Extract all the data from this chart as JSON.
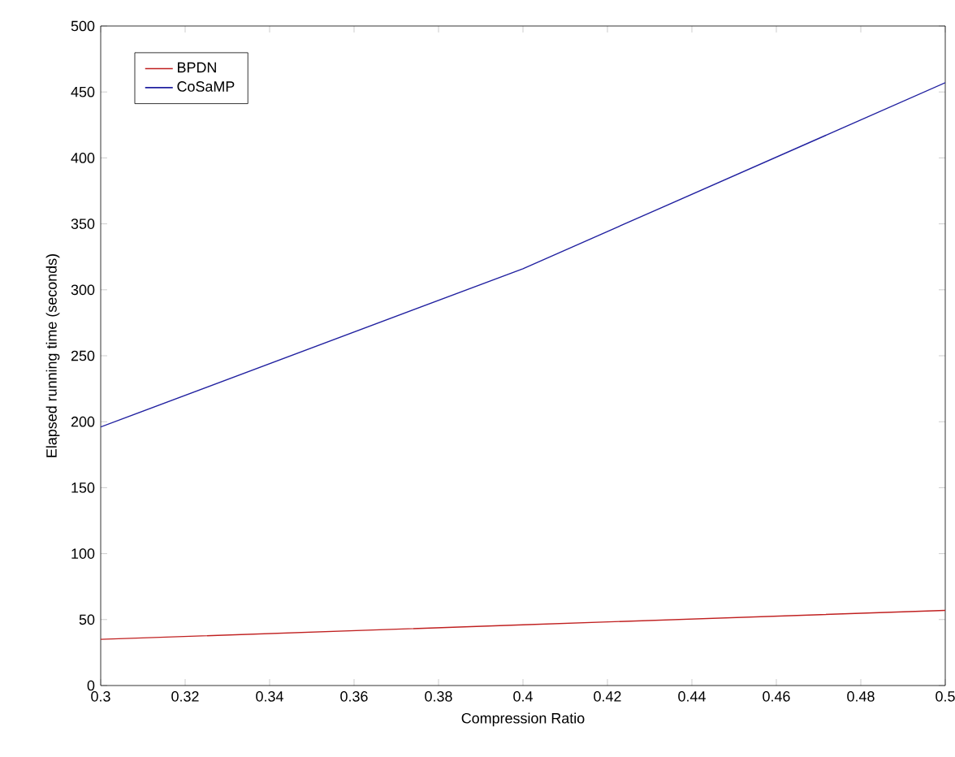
{
  "chart_data": {
    "type": "line",
    "xlabel": "Compression Ratio",
    "ylabel": "Elapsed running time (seconds)",
    "x": [
      0.3,
      0.4,
      0.5
    ],
    "series": [
      {
        "name": "BPDN",
        "color": "#c02020",
        "values": [
          35,
          46,
          57
        ]
      },
      {
        "name": "CoSaMP",
        "color": "#2020a0",
        "values": [
          196,
          316,
          457
        ]
      }
    ],
    "xlim": [
      0.3,
      0.5
    ],
    "xticks": [
      0.3,
      0.32,
      0.34,
      0.36,
      0.38,
      0.4,
      0.42,
      0.44,
      0.46,
      0.48,
      0.5
    ],
    "ylim": [
      0,
      500
    ],
    "yticks": [
      0,
      50,
      100,
      150,
      200,
      250,
      300,
      350,
      400,
      450,
      500
    ],
    "grid": false,
    "legend": "top left",
    "marker": "none",
    "line_style": "solid"
  }
}
